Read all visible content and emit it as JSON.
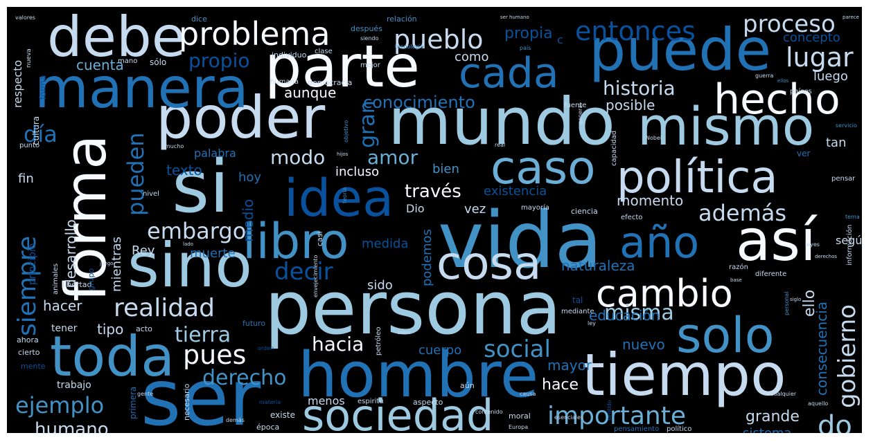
{
  "palette": {
    "background": "#000000",
    "white": "#f7fbff",
    "pale_blue": "#c6dbef",
    "light_blue": "#9ecae1",
    "sky_blue": "#6baed6",
    "mid_blue": "#4292c6",
    "blue": "#2171b5",
    "deep_blue": "#08519c",
    "navy": "#08306b"
  },
  "words": {
    "vida": "vida",
    "persona": "persona",
    "mundo": "mundo",
    "ser": "ser",
    "hombre": "hombre",
    "puede": "puede",
    "si": "si",
    "parte": "parte",
    "sino": "sino",
    "mismo": "mismo",
    "tiempo": "tiempo",
    "poder": "poder",
    "manera": "manera",
    "debe": "debe",
    "sociedad": "sociedad",
    "forma": "forma",
    "toda": "toda",
    "libro": "libro",
    "cosa": "cosa",
    "idea": "idea",
    "asi": "así",
    "caso": "caso",
    "politica": "política",
    "solo": "solo",
    "ano": "año",
    "cada": "cada",
    "hecho": "hecho",
    "cambio": "cambio",
    "problema": "problema",
    "entonces": "entonces",
    "proceso": "proceso",
    "lugar": "lugar",
    "pueblo": "pueblo",
    "propia": "propia",
    "concepto": "concepto",
    "cuenta": "cuenta",
    "propio": "propio",
    "como": "como",
    "aunque": "aunque",
    "historia": "historia",
    "luego": "luego",
    "conocimiento": "conocimiento",
    "posible": "posible",
    "gran": "gran",
    "dia": "día",
    "modo": "modo",
    "amor": "amor",
    "pueden": "pueden",
    "palabra": "palabra",
    "texto": "texto",
    "tan": "tan",
    "ademas": "además",
    "segun": "según",
    "traves": "través",
    "incluso": "incluso",
    "bien": "bien",
    "existencia": "existencia",
    "momento": "momento",
    "embargo": "embargo",
    "desarrollo": "desarrollo",
    "medio": "medio",
    "hoy": "hoy",
    "vez": "vez",
    "Dio": "Dio",
    "siempre": "siempre",
    "decir": "decir",
    "muerte": "muerte",
    "Rey": "Rey",
    "mientras": "mientras",
    "principio": "principio",
    "naturaleza": "naturaleza",
    "medida": "medida",
    "podemos": "podemos",
    "realidad": "realidad",
    "sido": "sido",
    "misma": "misma",
    "ello": "ello",
    "gobierno": "gobierno",
    "hacer": "hacer",
    "tierra": "tierra",
    "educacion": "educación",
    "social": "social",
    "tipo": "tipo",
    "hacia": "hacia",
    "pues": "pues",
    "nuevo": "nuevo",
    "consecuencia": "consecuencia",
    "cuerpo": "cuerpo",
    "mayor": "mayor",
    "derecho": "derecho",
    "hace": "hace",
    "ejemplo": "ejemplo",
    "humano": "humano",
    "importante": "importante",
    "grande": "grande",
    "do": "do",
    "menos": "menos",
    "sistema": "sistema",
    "trabajo": "trabajo",
    "tener": "tener",
    "fin": "fin",
    "respecto": "respecto",
    "cultura": "cultura",
    "mano": "mano",
    "solo_small": "sólo",
    "individuo": "individuo",
    "democracia": "democracia",
    "relacion": "relación",
    "despues": "después",
    "dice": "dice",
    "clase": "clase",
    "mejor": "mejor",
    "humana": "humana",
    "moral": "moral",
    "fuente": "fuente",
    "capacidad": "capacidad",
    "paises": "países",
    "ciencia": "ciencia",
    "efecto": "efecto",
    "nivel": "nivel",
    "mayoria": "mayoría",
    "razon": "razón",
    "diferente": "diferente",
    "libertad": "libertad",
    "grupo": "grupo",
    "animales": "animales",
    "ahora": "ahora",
    "cierto": "cierto",
    "mente": "mente",
    "acto": "acto",
    "futuro": "futuro",
    "mediante": "mediante",
    "aspecto": "aspecto",
    "existe": "existe",
    "epoca": "época",
    "espiritu": "espiritu",
    "aun": "aún",
    "petroleo": "petróleo",
    "pensamiento": "pensamiento",
    "politico": "político",
    "primera": "primera",
    "necesario": "necesario",
    "pensar": "pensar",
    "ver": "ver",
    "punto": "punto",
    "valores": "valores",
    "informacion": "información",
    "guerra": "guerra",
    "tal": "tal",
    "real": "real",
    "objetivo": "objetivo",
    "general": "general",
    "c": "c",
    "pais": "país",
    "nueva": "nueva",
    "lado": "lado",
    "juego": "juego",
    "Europa": "Europa",
    "casi": "casi",
    "teoria": "teoría",
    "envejecimiento": "envejecimiento",
    "leyes": "leyes",
    "ley": "ley",
    "derechos": "derechos",
    "siendo": "siendo",
    "tecnologia": "tecnología",
    "ser_humano": "ser humano",
    "parece": "parece",
    "cualquier": "cualquier",
    "aquello": "aquello",
    "esenciales": "esenciales",
    "contenido": "contenido",
    "causa": "causa",
    "gente": "gente",
    "demas": "demás",
    "materia": "materia",
    "tema": "tema",
    "servicio": "servicio",
    "ellos": "ellos",
    "base": "base",
    "siglo": "siglo",
    "personal": "personal",
    "sentido": "sentido",
    "saber": "saber",
    "orden": "orden",
    "mucho": "mucho",
    "hijos": "hijos",
    "Nobel": "Nobel",
    "forma_small": "forma"
  }
}
